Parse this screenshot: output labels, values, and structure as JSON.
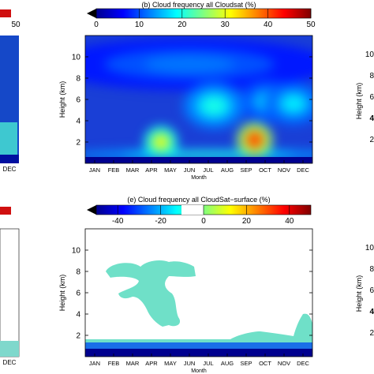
{
  "chart_data": [
    {
      "panel": "b",
      "type": "heatmap",
      "title": "(b) Cloud frequency all Cloudsat (%)",
      "xlabel": "Month",
      "ylabel": "Height (km)",
      "x_ticks": [
        "JAN",
        "FEB",
        "MAR",
        "APR",
        "MAY",
        "JUN",
        "JUL",
        "AUG",
        "SEP",
        "OCT",
        "NOV",
        "DEC"
      ],
      "y_ticks": [
        2,
        4,
        6,
        8,
        10
      ],
      "ylim": [
        0,
        12
      ],
      "colorbar": {
        "ticks": [
          0,
          10,
          20,
          30,
          40,
          50
        ],
        "range": [
          0,
          50
        ],
        "colormap": "jet",
        "extend": "min"
      },
      "blobs": [
        {
          "month": 5.5,
          "height": 9.3,
          "value": 12,
          "month_spread": 6.0,
          "height_spread": 1.8
        },
        {
          "month": 6.8,
          "height": 5.4,
          "value": 20,
          "month_spread": 1.3,
          "height_spread": 1.6
        },
        {
          "month": 9.6,
          "height": 5.8,
          "value": 16,
          "month_spread": 1.2,
          "height_spread": 1.5
        },
        {
          "month": 11.0,
          "height": 5.6,
          "value": 18,
          "month_spread": 1.2,
          "height_spread": 1.5
        },
        {
          "month": 4.0,
          "height": 2.0,
          "value": 32,
          "month_spread": 0.7,
          "height_spread": 1.1
        },
        {
          "month": 8.95,
          "height": 2.2,
          "value": 42,
          "month_spread": 0.75,
          "height_spread": 1.2
        },
        {
          "month": 6.5,
          "height": 0.8,
          "value": 22,
          "month_spread": 6.0,
          "height_spread": 0.35
        }
      ],
      "background_value": 2
    },
    {
      "panel": "e",
      "type": "heatmap",
      "title": "(e) Cloud frequency all CloudSat−surface (%)",
      "xlabel": "Month",
      "ylabel": "Height (km)",
      "x_ticks": [
        "JAN",
        "FEB",
        "MAR",
        "APR",
        "MAY",
        "JUN",
        "JUL",
        "AUG",
        "SEP",
        "OCT",
        "NOV",
        "DEC"
      ],
      "y_ticks": [
        2,
        4,
        6,
        8,
        10
      ],
      "ylim": [
        0,
        12
      ],
      "colorbar": {
        "ticks": [
          -40,
          -20,
          0,
          20,
          40
        ],
        "range": [
          -50,
          50
        ],
        "colormap": "jet",
        "extend": "min"
      },
      "regions": [
        {
          "description": "near-zero band (white)",
          "value": 0
        },
        {
          "description": "small negative difference region (light cyan), Feb–Jun up to ~8.5 km and low levels Aug–Dec",
          "value": -15
        },
        {
          "description": "strong negative difference near surface (dark blue)",
          "value": -50,
          "height_range": [
            0,
            1.0
          ]
        }
      ]
    }
  ],
  "partial_panels": {
    "left_top_colorbar_tick": "50",
    "left_top_month_tick": "DEC",
    "right_top_y_ticks": [
      "10",
      "8",
      "6",
      "4",
      "2"
    ],
    "right_bottom_y_ticks": [
      "10",
      "8",
      "6",
      "4",
      "2"
    ],
    "left_bottom_month_tick": "DEC"
  }
}
